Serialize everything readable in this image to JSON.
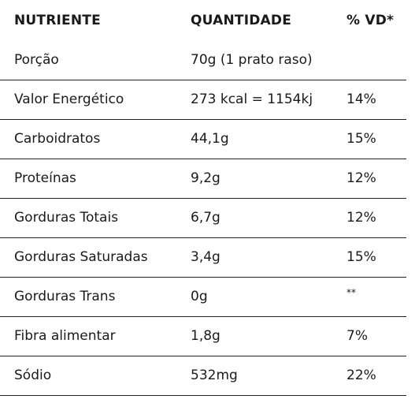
{
  "header": {
    "nutrient": "NUTRIENTE",
    "quantity": "QUANTIDADE",
    "dv": "% VD*"
  },
  "rows": [
    {
      "nutrient": "Porção",
      "quantity": "70g (1 prato raso)",
      "dv": ""
    },
    {
      "nutrient": "Valor Energético",
      "quantity": "273 kcal = 1154kj",
      "dv": "14%"
    },
    {
      "nutrient": "Carboidratos",
      "quantity": "44,1g",
      "dv": "15%"
    },
    {
      "nutrient": "Proteínas",
      "quantity": "9,2g",
      "dv": "12%"
    },
    {
      "nutrient": "Gorduras Totais",
      "quantity": "6,7g",
      "dv": "12%"
    },
    {
      "nutrient": "Gorduras Saturadas",
      "quantity": "3,4g",
      "dv": "15%"
    },
    {
      "nutrient": "Gorduras Trans",
      "quantity": "0g",
      "dv": "**"
    },
    {
      "nutrient": "Fibra alimentar",
      "quantity": "1,8g",
      "dv": "7%"
    },
    {
      "nutrient": "Sódio",
      "quantity": "532mg",
      "dv": "22%"
    }
  ]
}
